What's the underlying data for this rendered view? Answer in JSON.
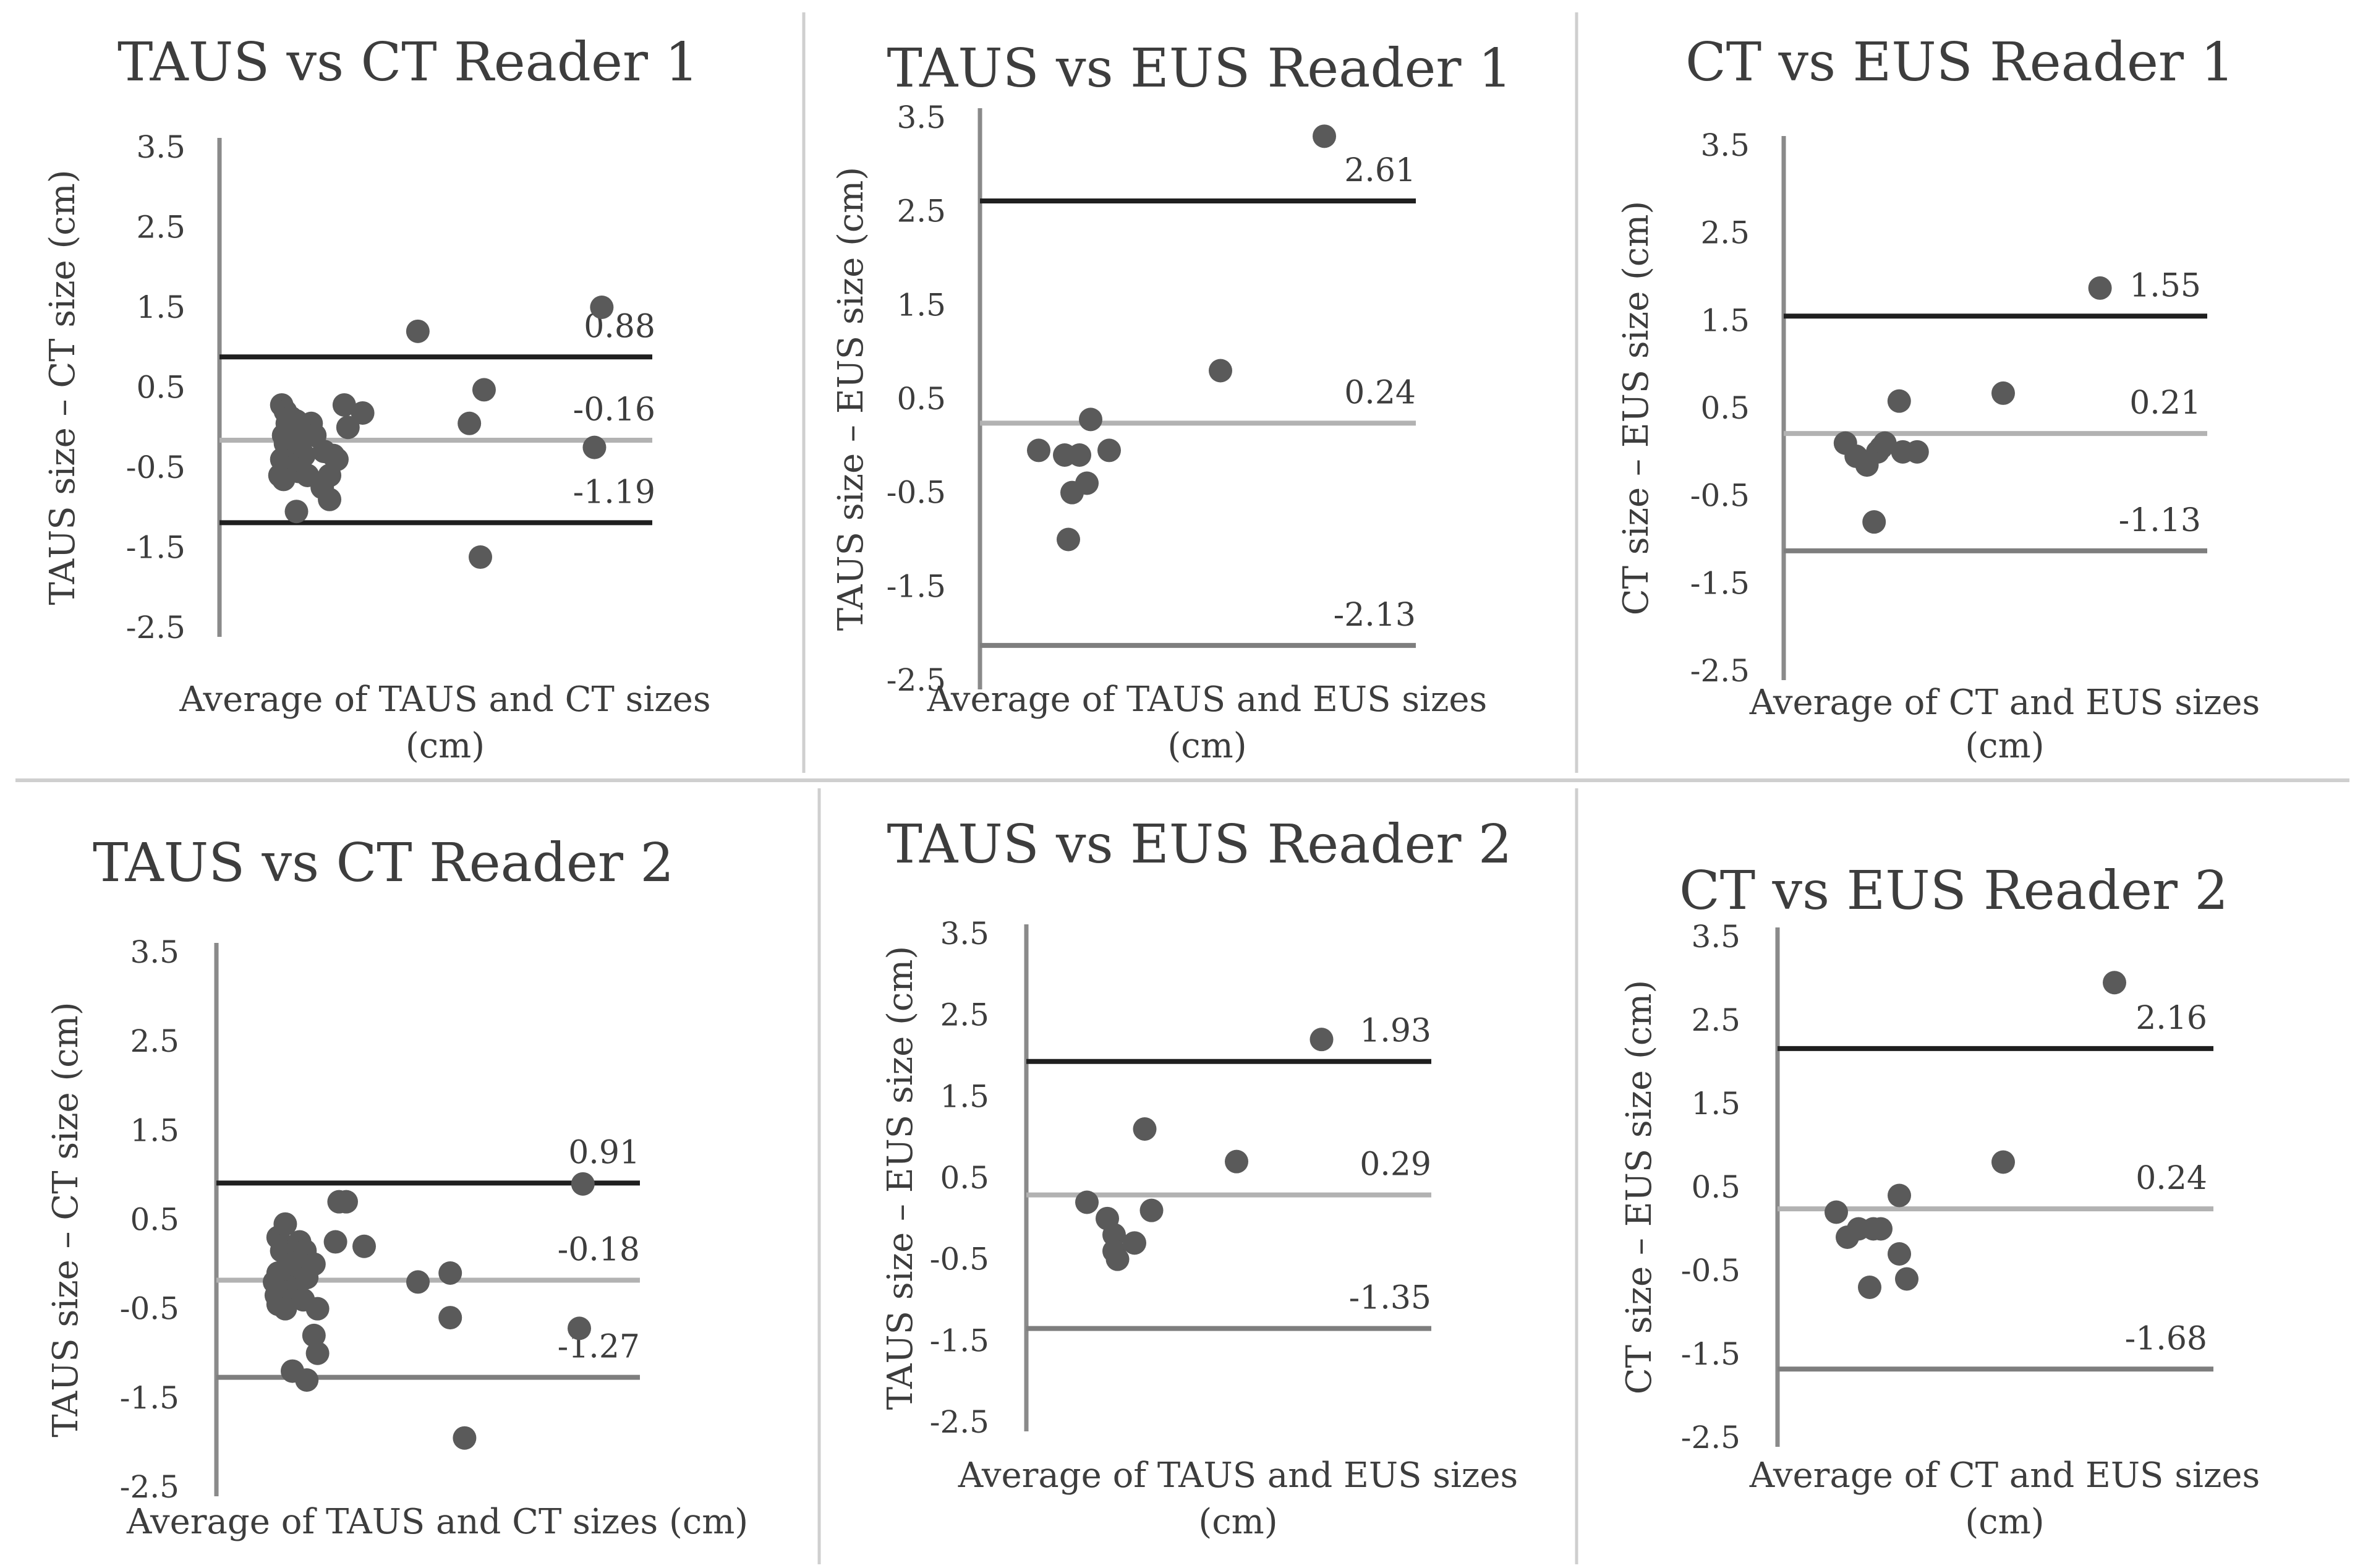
{
  "colors": {
    "background": "#ffffff",
    "axis": "#8a8a8a",
    "limit_line": "#1f1f1f",
    "mean_line": "#b2b2b2",
    "lower_line": "#7e7e7e",
    "point": "#5a5a5a",
    "text": "#3d3d3d",
    "divider": "#cfcfcf"
  },
  "chart_data": [
    {
      "type": "scatter",
      "title": "TAUS vs CT Reader 1",
      "xlabel": [
        "Average of TAUS and CT sizes",
        "(cm)"
      ],
      "ylabel": "TAUS size – CT size (cm)",
      "yticks": [
        "3.5",
        "2.5",
        "1.5",
        "0.5",
        "-0.5",
        "-1.5",
        "-2.5"
      ],
      "ylim": [
        -2.5,
        3.5
      ],
      "xlim": [
        0,
        10
      ],
      "lines": {
        "upper": 0.88,
        "mean": -0.16,
        "lower": -1.19
      },
      "line_labels": {
        "upper": "0.88",
        "mean": "-0.16",
        "lower": "-1.19"
      },
      "points": [
        [
          0.6,
          0.28
        ],
        [
          0.7,
          0.2
        ],
        [
          0.75,
          0.05
        ],
        [
          0.8,
          0.0
        ],
        [
          0.85,
          -0.05
        ],
        [
          0.65,
          -0.1
        ],
        [
          0.9,
          -0.15
        ],
        [
          0.7,
          -0.2
        ],
        [
          1.0,
          -0.25
        ],
        [
          0.8,
          -0.3
        ],
        [
          1.1,
          -0.3
        ],
        [
          0.95,
          -0.35
        ],
        [
          1.2,
          -0.35
        ],
        [
          0.6,
          -0.4
        ],
        [
          0.75,
          -0.45
        ],
        [
          0.9,
          -0.5
        ],
        [
          1.05,
          -0.55
        ],
        [
          0.55,
          -0.6
        ],
        [
          1.3,
          -0.6
        ],
        [
          0.65,
          -0.65
        ],
        [
          0.95,
          -0.05
        ],
        [
          1.15,
          -0.15
        ],
        [
          0.85,
          0.12
        ],
        [
          1.0,
          0.08
        ],
        [
          1.4,
          0.05
        ],
        [
          1.5,
          -0.1
        ],
        [
          1.75,
          -0.3
        ],
        [
          1.9,
          -0.6
        ],
        [
          2.0,
          -0.35
        ],
        [
          2.1,
          -0.4
        ],
        [
          2.3,
          0.28
        ],
        [
          2.4,
          0.0
        ],
        [
          2.8,
          0.18
        ],
        [
          1.7,
          -0.75
        ],
        [
          1.9,
          -0.9
        ],
        [
          1.0,
          -1.05
        ],
        [
          4.3,
          1.2
        ],
        [
          5.7,
          0.05
        ],
        [
          6.1,
          0.47
        ],
        [
          6.0,
          -1.62
        ],
        [
          9.1,
          -0.25
        ],
        [
          9.3,
          1.5
        ]
      ]
    },
    {
      "type": "scatter",
      "title": "TAUS vs EUS Reader 1",
      "xlabel": [
        "Average of TAUS and EUS sizes",
        "(cm)"
      ],
      "ylabel": "TAUS size – EUS size (cm)",
      "yticks": [
        "3.5",
        "2.5",
        "1.5",
        "0.5",
        "-0.5",
        "-1.5",
        "-2.5"
      ],
      "ylim": [
        -2.5,
        3.5
      ],
      "xlim": [
        0,
        10
      ],
      "lines": {
        "upper": 2.61,
        "mean": 0.24,
        "lower": -2.13
      },
      "line_labels": {
        "upper": "2.61",
        "mean": "0.24",
        "lower": "-2.13"
      },
      "points": [
        [
          0.5,
          -0.05
        ],
        [
          1.2,
          -0.1
        ],
        [
          1.6,
          -0.1
        ],
        [
          1.9,
          0.28
        ],
        [
          2.4,
          -0.05
        ],
        [
          1.8,
          -0.4
        ],
        [
          1.4,
          -0.5
        ],
        [
          1.3,
          -1.0
        ],
        [
          5.4,
          0.8
        ],
        [
          8.2,
          3.3
        ]
      ]
    },
    {
      "type": "scatter",
      "title": "CT vs EUS Reader 1",
      "xlabel": [
        "Average of CT and EUS sizes",
        "(cm)"
      ],
      "ylabel": "CT size – EUS size (cm)",
      "yticks": [
        "3.5",
        "2.5",
        "1.5",
        "0.5",
        "-0.5",
        "-1.5",
        "-2.5"
      ],
      "ylim": [
        -2.5,
        3.5
      ],
      "xlim": [
        0,
        10
      ],
      "lines": {
        "upper": 1.55,
        "mean": 0.21,
        "lower": -1.13
      },
      "line_labels": {
        "upper": "1.55",
        "mean": "0.21",
        "lower": "-1.13"
      },
      "points": [
        [
          0.6,
          0.1
        ],
        [
          0.9,
          -0.05
        ],
        [
          1.2,
          -0.15
        ],
        [
          1.5,
          0.0
        ],
        [
          1.6,
          0.05
        ],
        [
          1.7,
          0.1
        ],
        [
          2.2,
          0.0
        ],
        [
          2.6,
          0.0
        ],
        [
          2.1,
          0.58
        ],
        [
          1.4,
          -0.8
        ],
        [
          5.0,
          0.67
        ],
        [
          7.7,
          1.87
        ]
      ]
    },
    {
      "type": "scatter",
      "title": "TAUS vs CT Reader 2",
      "xlabel": [
        "Average of TAUS and CT sizes (cm)"
      ],
      "ylabel": "TAUS size – CT size (cm)",
      "yticks": [
        "3.5",
        "2.5",
        "1.5",
        "0.5",
        "-0.5",
        "-1.5",
        "-2.5"
      ],
      "ylim": [
        -2.5,
        3.5
      ],
      "xlim": [
        0,
        10
      ],
      "lines": {
        "upper": 0.91,
        "mean": -0.18,
        "lower": -1.27
      },
      "line_labels": {
        "upper": "0.91",
        "mean": "-0.18",
        "lower": "-1.27"
      },
      "points": [
        [
          0.6,
          0.3
        ],
        [
          0.8,
          0.45
        ],
        [
          0.7,
          0.15
        ],
        [
          0.9,
          0.1
        ],
        [
          1.0,
          0.0
        ],
        [
          0.6,
          -0.1
        ],
        [
          0.75,
          -0.15
        ],
        [
          0.5,
          -0.2
        ],
        [
          1.1,
          -0.2
        ],
        [
          0.85,
          -0.25
        ],
        [
          0.65,
          -0.3
        ],
        [
          1.0,
          -0.3
        ],
        [
          0.55,
          -0.35
        ],
        [
          0.95,
          -0.35
        ],
        [
          0.7,
          -0.4
        ],
        [
          1.3,
          -0.4
        ],
        [
          0.6,
          -0.45
        ],
        [
          0.8,
          -0.5
        ],
        [
          1.2,
          0.25
        ],
        [
          1.35,
          0.15
        ],
        [
          1.4,
          -0.15
        ],
        [
          1.6,
          0.0
        ],
        [
          2.3,
          0.7
        ],
        [
          2.5,
          0.7
        ],
        [
          3.0,
          0.2
        ],
        [
          2.2,
          0.25
        ],
        [
          1.7,
          -0.5
        ],
        [
          1.6,
          -0.8
        ],
        [
          1.7,
          -1.0
        ],
        [
          1.0,
          -1.2
        ],
        [
          1.4,
          -1.3
        ],
        [
          4.5,
          -0.2
        ],
        [
          5.4,
          -0.1
        ],
        [
          5.4,
          -0.6
        ],
        [
          5.8,
          -1.95
        ],
        [
          9.0,
          -0.72
        ],
        [
          9.1,
          0.9
        ]
      ]
    },
    {
      "type": "scatter",
      "title": "TAUS vs EUS Reader 2",
      "xlabel": [
        "Average of TAUS and EUS sizes",
        "(cm)"
      ],
      "ylabel": "TAUS size – EUS size (cm)",
      "yticks": [
        "3.5",
        "2.5",
        "1.5",
        "0.5",
        "-0.5",
        "-1.5",
        "-2.5"
      ],
      "ylim": [
        -2.5,
        3.5
      ],
      "xlim": [
        0,
        10
      ],
      "lines": {
        "upper": 1.93,
        "mean": 0.29,
        "lower": -1.35
      },
      "line_labels": {
        "upper": "1.93",
        "mean": "0.29",
        "lower": "-1.35"
      },
      "points": [
        [
          0.6,
          0.2
        ],
        [
          1.2,
          0.0
        ],
        [
          1.4,
          -0.2
        ],
        [
          1.4,
          -0.4
        ],
        [
          1.5,
          -0.5
        ],
        [
          2.0,
          -0.3
        ],
        [
          2.5,
          0.1
        ],
        [
          2.3,
          1.1
        ],
        [
          5.0,
          0.7
        ],
        [
          7.5,
          2.2
        ]
      ]
    },
    {
      "type": "scatter",
      "title": "CT vs EUS Reader 2",
      "xlabel": [
        "Average of CT and EUS sizes",
        "(cm)"
      ],
      "ylabel": "CT size – EUS size (cm)",
      "yticks": [
        "3.5",
        "2.5",
        "1.5",
        "0.5",
        "-0.5",
        "-1.5",
        "-2.5"
      ],
      "ylim": [
        -2.5,
        3.5
      ],
      "xlim": [
        0,
        10
      ],
      "lines": {
        "upper": 2.16,
        "mean": 0.24,
        "lower": -1.68
      },
      "line_labels": {
        "upper": "2.16",
        "mean": "0.24",
        "lower": "-1.68"
      },
      "points": [
        [
          0.5,
          0.2
        ],
        [
          0.8,
          -0.1
        ],
        [
          1.1,
          0.0
        ],
        [
          1.5,
          0.0
        ],
        [
          1.7,
          0.0
        ],
        [
          2.2,
          0.4
        ],
        [
          2.2,
          -0.3
        ],
        [
          2.4,
          -0.6
        ],
        [
          1.4,
          -0.7
        ],
        [
          5.0,
          0.8
        ],
        [
          8.0,
          2.95
        ]
      ]
    }
  ]
}
